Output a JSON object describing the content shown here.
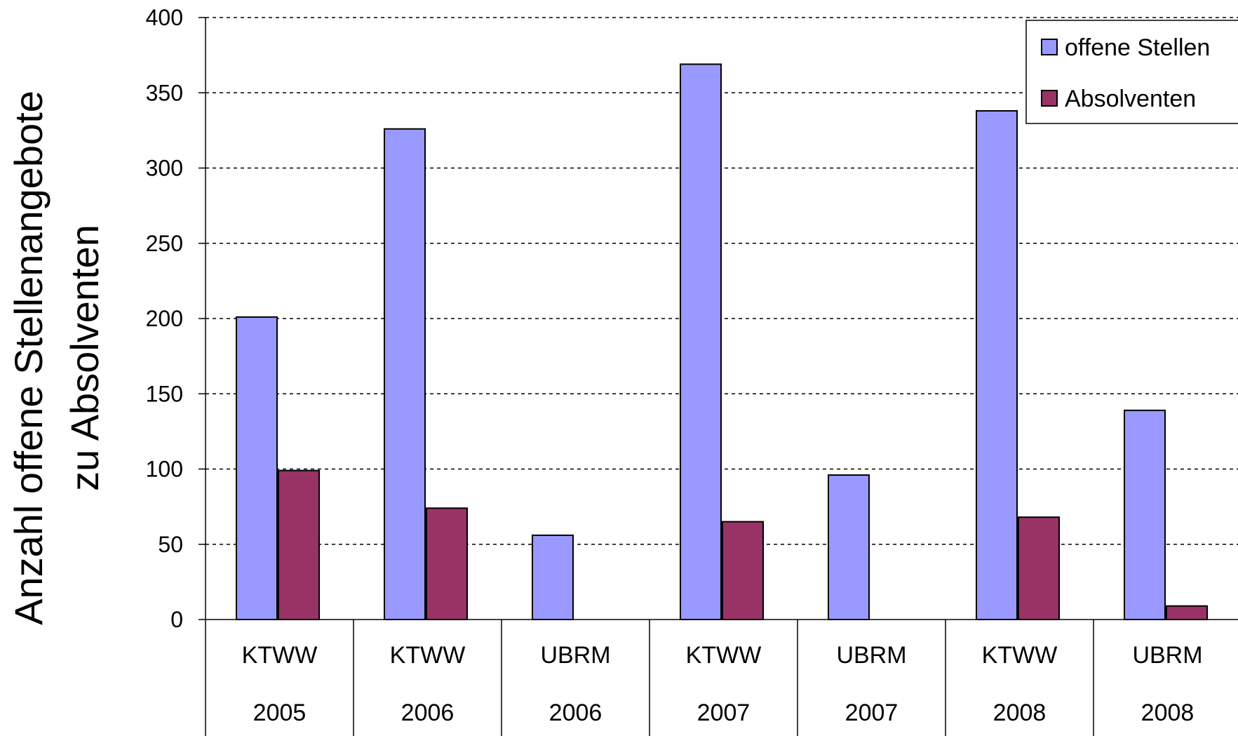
{
  "chart_data": {
    "type": "bar",
    "ylabel_lines": [
      "Anzahl offene Stellenangebote",
      "zu Absolventen"
    ],
    "ylim": [
      0,
      400
    ],
    "yticks": [
      0,
      50,
      100,
      150,
      200,
      250,
      300,
      350,
      400
    ],
    "grid": true,
    "legend_position": "top-right",
    "categories": [
      {
        "program": "KTWW",
        "year": "2005"
      },
      {
        "program": "KTWW",
        "year": "2006"
      },
      {
        "program": "UBRM",
        "year": "2006"
      },
      {
        "program": "KTWW",
        "year": "2007"
      },
      {
        "program": "UBRM",
        "year": "2007"
      },
      {
        "program": "KTWW",
        "year": "2008"
      },
      {
        "program": "UBRM",
        "year": "2008"
      }
    ],
    "series": [
      {
        "name": "offene Stellen",
        "color": "#9999ff",
        "values": [
          201,
          326,
          56,
          369,
          96,
          338,
          139
        ]
      },
      {
        "name": "Absolventen",
        "color": "#993366",
        "values": [
          99,
          74,
          null,
          65,
          null,
          68,
          9
        ]
      }
    ]
  }
}
